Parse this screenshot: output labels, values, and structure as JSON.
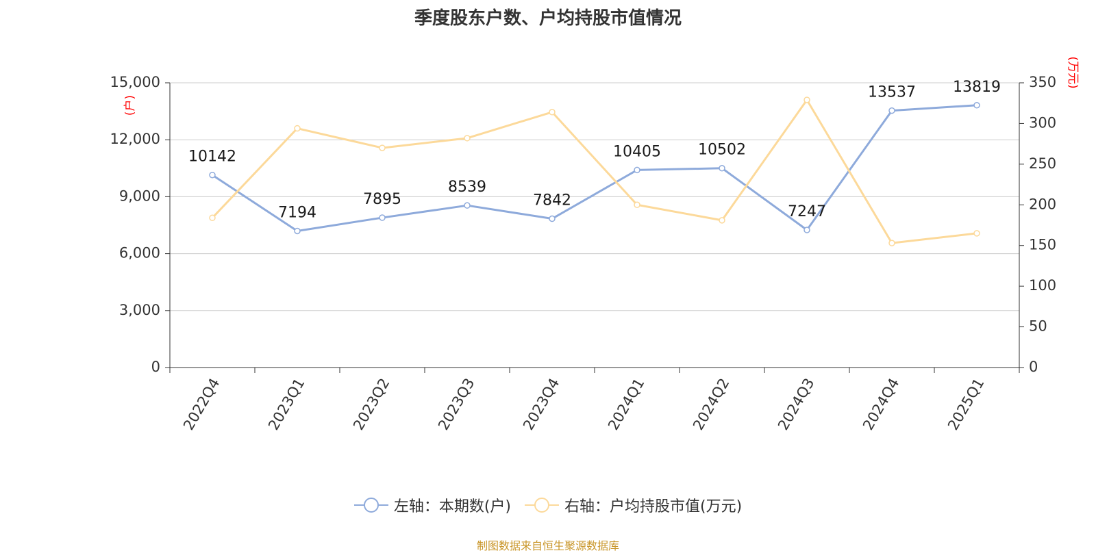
{
  "chart_data": {
    "type": "line",
    "title": "季度股东户数、户均持股市值情况",
    "categories": [
      "2022Q4",
      "2023Q1",
      "2023Q2",
      "2023Q3",
      "2023Q4",
      "2024Q1",
      "2024Q2",
      "2024Q3",
      "2024Q4",
      "2025Q1"
    ],
    "left_axis": {
      "unit_label": "(户)",
      "ylim": [
        0,
        15000
      ],
      "ticks": [
        0,
        3000,
        6000,
        9000,
        12000,
        15000
      ],
      "tick_labels": [
        "0",
        "3,000",
        "6,000",
        "9,000",
        "12,000",
        "15,000"
      ]
    },
    "right_axis": {
      "unit_label": "(万元)",
      "ylim": [
        0,
        350
      ],
      "ticks": [
        0,
        50,
        100,
        150,
        200,
        250,
        300,
        350
      ],
      "tick_labels": [
        "0",
        "50",
        "100",
        "150",
        "200",
        "250",
        "300",
        "350"
      ]
    },
    "grid": true,
    "legend_position": "bottom",
    "series": [
      {
        "name": "左轴：本期数(户)",
        "axis": "left",
        "color": "#8eaadb",
        "show_labels": true,
        "values": [
          10142,
          7194,
          7895,
          8539,
          7842,
          10405,
          10502,
          7247,
          13537,
          13819
        ],
        "value_labels": [
          "10142",
          "7194",
          "7895",
          "8539",
          "7842",
          "10405",
          "10502",
          "7247",
          "13537",
          "13819"
        ]
      },
      {
        "name": "右轴：户均持股市值(万元)",
        "axis": "right",
        "color": "#fcd99a",
        "show_labels": false,
        "values": [
          184,
          294,
          270,
          282,
          314,
          200,
          181,
          329,
          153,
          165
        ]
      }
    ]
  },
  "source": "制图数据来自恒生聚源数据库"
}
